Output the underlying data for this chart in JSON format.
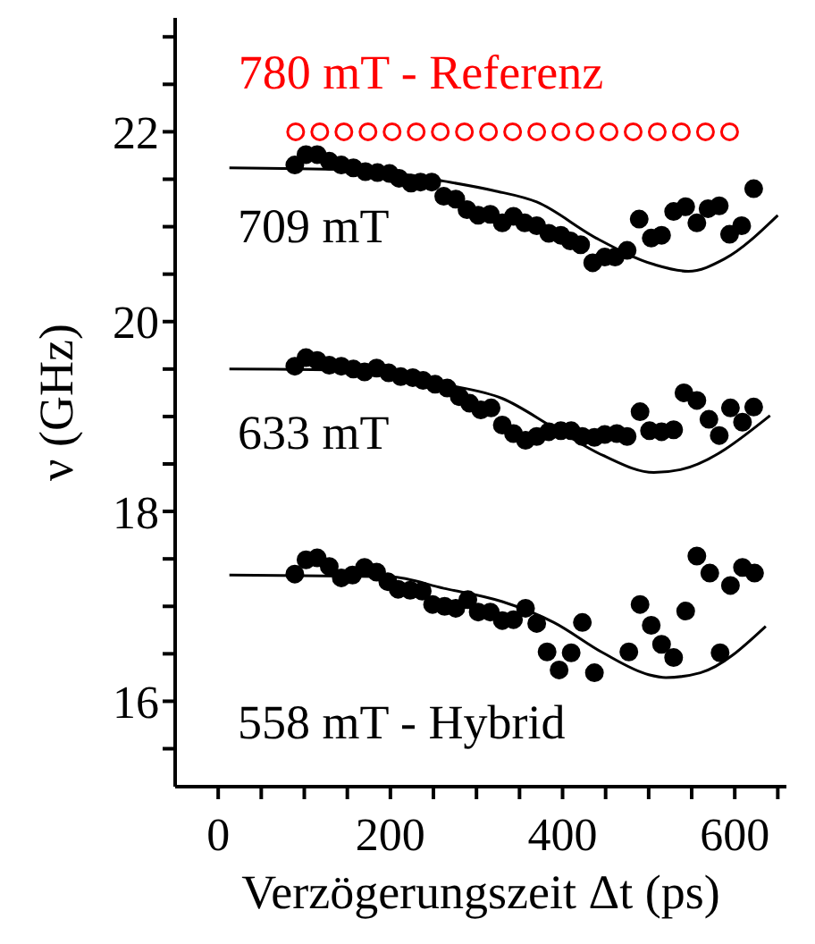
{
  "chart_data": {
    "type": "scatter",
    "xlabel": "Verzögerungszeit Δt (ps)",
    "ylabel": "ν (GHz)",
    "xlim": [
      -50,
      660
    ],
    "ylim": [
      15.1,
      23.2
    ],
    "xticks": [
      0,
      {
        "value": 50,
        "label": null
      },
      {
        "value": 100,
        "label": null
      },
      {
        "value": 150,
        "label": null
      },
      200,
      {
        "value": 250,
        "label": null
      },
      {
        "value": 300,
        "label": null
      },
      {
        "value": 350,
        "label": null
      },
      400,
      {
        "value": 450,
        "label": null
      },
      {
        "value": 500,
        "label": null
      },
      {
        "value": 550,
        "label": null
      },
      600,
      {
        "value": 650,
        "label": null
      }
    ],
    "yticks": [
      {
        "value": 15.5,
        "label": null
      },
      16,
      {
        "value": 16.5,
        "label": null
      },
      {
        "value": 17,
        "label": null
      },
      {
        "value": 17.5,
        "label": null
      },
      18,
      {
        "value": 18.5,
        "label": null
      },
      {
        "value": 19,
        "label": null
      },
      {
        "value": 19.5,
        "label": null
      },
      20,
      {
        "value": 20.5,
        "label": null
      },
      {
        "value": 21,
        "label": null
      },
      {
        "value": 21.5,
        "label": null
      },
      22,
      {
        "value": 22.5,
        "label": null
      },
      {
        "value": 23,
        "label": null
      }
    ],
    "marker": "circle",
    "series": [
      {
        "name": "780 mT - Referenz",
        "color": "#ff0000",
        "x": [
          90,
          118,
          146,
          174,
          202,
          230,
          258,
          286,
          314,
          342,
          370,
          398,
          426,
          454,
          482,
          510,
          538,
          566,
          594
        ],
        "values": [
          22,
          22,
          22,
          22,
          22,
          22,
          22,
          22,
          22,
          22,
          22,
          22,
          22,
          22,
          22,
          22,
          22,
          22,
          22
        ]
      },
      {
        "name": "709 mT",
        "color": "#000000",
        "x": [
          89,
          102,
          115,
          129,
          143,
          157,
          171,
          185,
          199,
          210,
          224,
          235,
          248,
          262,
          276,
          289,
          302,
          316,
          330,
          343,
          356,
          370,
          384,
          398,
          409,
          421,
          435,
          449,
          461,
          475,
          489,
          503,
          515,
          529,
          543,
          556,
          569,
          582,
          594,
          608,
          622
        ],
        "values": [
          21.65,
          21.76,
          21.76,
          21.69,
          21.65,
          21.62,
          21.58,
          21.57,
          21.56,
          21.51,
          21.46,
          21.47,
          21.47,
          21.32,
          21.29,
          21.18,
          21.12,
          21.13,
          21.04,
          21.11,
          21.04,
          21.01,
          20.93,
          20.91,
          20.85,
          20.81,
          20.62,
          20.68,
          20.68,
          20.75,
          21.08,
          20.88,
          20.91,
          21.16,
          21.21,
          21.04,
          21.19,
          21.22,
          20.92,
          21.01,
          21.4
        ]
      },
      {
        "type": "line",
        "color": "#000000",
        "marker": "none",
        "x": [
          13,
          150,
          200,
          262,
          320,
          370,
          439,
          507,
          546,
          588,
          650
        ],
        "values": [
          21.62,
          21.6,
          21.57,
          21.48,
          21.38,
          21.26,
          20.88,
          20.6,
          20.53,
          20.66,
          21.12
        ]
      },
      {
        "name": "633 mT",
        "color": "#000000",
        "x": [
          89,
          102,
          115,
          129,
          143,
          157,
          170,
          184,
          198,
          212,
          226,
          238,
          252,
          266,
          280,
          292,
          305,
          317,
          330,
          343,
          357,
          370,
          384,
          398,
          410,
          423,
          437,
          449,
          463,
          475,
          490,
          501,
          515,
          529,
          541,
          556,
          570,
          582,
          595,
          609,
          622
        ],
        "values": [
          19.53,
          19.62,
          19.59,
          19.54,
          19.53,
          19.5,
          19.47,
          19.51,
          19.46,
          19.42,
          19.41,
          19.38,
          19.34,
          19.3,
          19.21,
          19.14,
          19.07,
          19.09,
          18.91,
          18.82,
          18.75,
          18.79,
          18.84,
          18.85,
          18.85,
          18.79,
          18.78,
          18.81,
          18.82,
          18.79,
          19.05,
          18.85,
          18.84,
          18.86,
          19.25,
          19.17,
          18.97,
          18.8,
          19.09,
          18.94,
          19.1
        ]
      },
      {
        "type": "line",
        "color": "#000000",
        "marker": "none",
        "x": [
          13,
          150,
          200,
          262,
          330,
          392,
          447,
          506,
          537,
          641
        ],
        "values": [
          19.5,
          19.49,
          19.45,
          19.34,
          19.19,
          18.87,
          18.59,
          18.41,
          18.44,
          19.01
        ]
      },
      {
        "name": "558 mT - Hybrid",
        "color": "#000000",
        "x": [
          89,
          102,
          115,
          129,
          143,
          156,
          170,
          184,
          197,
          209,
          223,
          237,
          249,
          263,
          276,
          290,
          302,
          316,
          330,
          343,
          357,
          370,
          382,
          396,
          410,
          423,
          437,
          477,
          490,
          503,
          515,
          529,
          543,
          556,
          571,
          583,
          595,
          609,
          623
        ],
        "values": [
          17.34,
          17.49,
          17.51,
          17.42,
          17.3,
          17.33,
          17.41,
          17.36,
          17.26,
          17.18,
          17.17,
          17.16,
          17.02,
          17,
          16.98,
          17.07,
          16.94,
          16.94,
          16.85,
          16.86,
          16.98,
          16.82,
          16.52,
          16.33,
          16.51,
          16.83,
          16.3,
          16.52,
          17.02,
          16.8,
          16.6,
          16.46,
          16.95,
          17.53,
          17.35,
          16.51,
          17.22,
          17.41,
          17.35
        ]
      },
      {
        "type": "line",
        "color": "#000000",
        "marker": "none",
        "x": [
          13,
          200,
          262,
          330,
          390,
          447,
          500,
          520,
          560,
          636
        ],
        "values": [
          17.33,
          17.31,
          17.19,
          17.05,
          16.83,
          16.51,
          16.28,
          16.25,
          16.3,
          16.79
        ]
      }
    ]
  }
}
